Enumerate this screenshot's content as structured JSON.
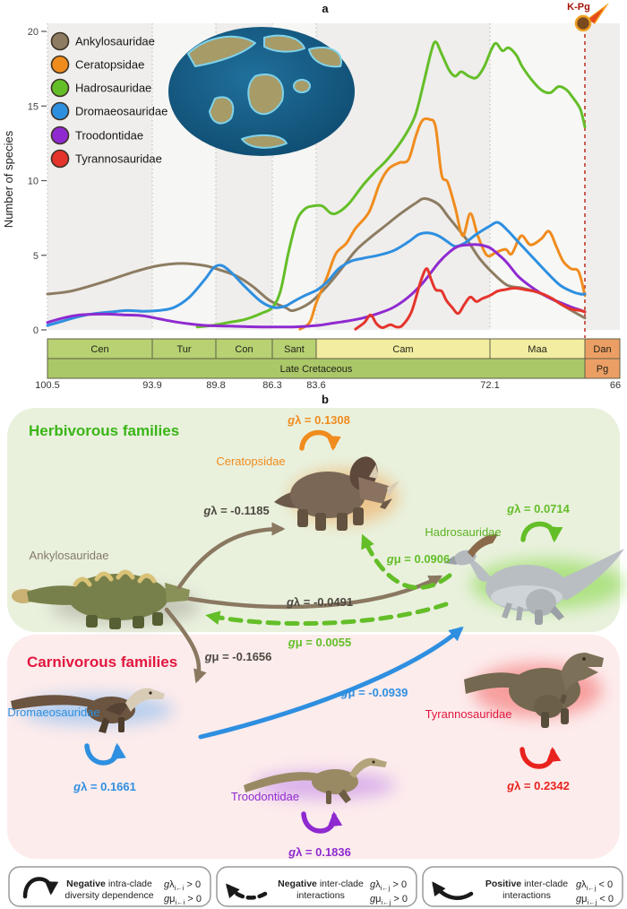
{
  "figure": {
    "panel_a_label": "a",
    "panel_b_label": "b"
  },
  "chart_data": {
    "type": "line",
    "title": "",
    "xlabel": "",
    "ylabel": "Number of species",
    "y_ticks": [
      0,
      5,
      10,
      15,
      20
    ],
    "ylim": [
      0,
      20
    ],
    "x_axis_reversed": true,
    "x_range_ma": [
      100.5,
      66
    ],
    "x_tick_labels": [
      "100.5",
      "93.9",
      "89.8",
      "86.3",
      "83.6",
      "72.1",
      "66"
    ],
    "kpg_label": "K-Pg",
    "legend_position": "upper-left",
    "grid": "dotted vertical stage boundaries",
    "series": [
      {
        "name": "Ankylosauridae",
        "color": "#8d7c62",
        "points": [
          [
            100.5,
            2.4
          ],
          [
            99,
            2.6
          ],
          [
            97,
            3.2
          ],
          [
            95,
            3.9
          ],
          [
            93.5,
            4.3
          ],
          [
            92,
            4.45
          ],
          [
            90.5,
            4.3
          ],
          [
            89.5,
            4.0
          ],
          [
            88.5,
            3.6
          ],
          [
            87.5,
            2.9
          ],
          [
            86.5,
            2.0
          ],
          [
            85.5,
            1.5
          ],
          [
            85,
            1.3
          ],
          [
            84,
            1.8
          ],
          [
            83,
            2.8
          ],
          [
            82,
            4.0
          ],
          [
            81,
            5.3
          ],
          [
            80,
            6.2
          ],
          [
            79,
            7.0
          ],
          [
            78,
            7.8
          ],
          [
            77,
            8.5
          ],
          [
            76.4,
            8.8
          ],
          [
            75.5,
            8.4
          ],
          [
            74.8,
            7.5
          ],
          [
            73.6,
            6.0
          ],
          [
            72.8,
            4.8
          ],
          [
            72,
            3.9
          ],
          [
            71,
            3.0
          ],
          [
            70,
            2.8
          ],
          [
            69,
            2.5
          ],
          [
            68,
            2.0
          ],
          [
            67.5,
            1.7
          ],
          [
            66.7,
            1.2
          ],
          [
            66,
            0.8
          ]
        ]
      },
      {
        "name": "Ceratopsidae",
        "color": "#f08c1e",
        "points": [
          [
            84.6,
            0.05
          ],
          [
            84.0,
            0.5
          ],
          [
            83.6,
            1.8
          ],
          [
            82.9,
            3.5
          ],
          [
            82.3,
            5.1
          ],
          [
            81.6,
            5.8
          ],
          [
            81,
            6.8
          ],
          [
            80.1,
            7.9
          ],
          [
            79.4,
            9.8
          ],
          [
            78.8,
            10.8
          ],
          [
            78.1,
            11.2
          ],
          [
            77.5,
            11.4
          ],
          [
            77,
            13.0
          ],
          [
            76.6,
            14.0
          ],
          [
            76.1,
            14.1
          ],
          [
            75.7,
            13.6
          ],
          [
            75.3,
            10.4
          ],
          [
            74.9,
            9.9
          ],
          [
            74.4,
            8.2
          ],
          [
            73.9,
            6.3
          ],
          [
            73.4,
            7.8
          ],
          [
            72.9,
            6.3
          ],
          [
            72.3,
            5.0
          ],
          [
            71.7,
            5.2
          ],
          [
            71.1,
            5.4
          ],
          [
            70.7,
            5.1
          ],
          [
            70.1,
            6.3
          ],
          [
            69.5,
            5.7
          ],
          [
            68.8,
            6.1
          ],
          [
            68.3,
            6.6
          ],
          [
            67.8,
            5.5
          ],
          [
            67.4,
            4.6
          ],
          [
            66.9,
            4.1
          ],
          [
            66.4,
            3.9
          ],
          [
            66,
            2.3
          ]
        ]
      },
      {
        "name": "Hadrosauridae",
        "color": "#64be28",
        "points": [
          [
            91,
            0.2
          ],
          [
            90,
            0.3
          ],
          [
            89,
            0.5
          ],
          [
            88,
            0.7
          ],
          [
            87,
            1.1
          ],
          [
            86.3,
            1.5
          ],
          [
            85.8,
            2.6
          ],
          [
            85.3,
            5.2
          ],
          [
            84.8,
            7.3
          ],
          [
            84.3,
            8.1
          ],
          [
            83.8,
            8.3
          ],
          [
            83.2,
            8.3
          ],
          [
            82.6,
            7.8
          ],
          [
            82.1,
            7.9
          ],
          [
            81.4,
            8.5
          ],
          [
            80.5,
            9.7
          ],
          [
            79.7,
            10.6
          ],
          [
            79,
            11.3
          ],
          [
            78.2,
            12.3
          ],
          [
            77.5,
            13.4
          ],
          [
            77,
            14.5
          ],
          [
            76.5,
            16.5
          ],
          [
            76,
            18.6
          ],
          [
            75.7,
            19.3
          ],
          [
            75.3,
            18.5
          ],
          [
            74.8,
            17.4
          ],
          [
            74.4,
            17.0
          ],
          [
            74,
            17.3
          ],
          [
            73.5,
            17.0
          ],
          [
            73,
            16.9
          ],
          [
            72.5,
            17.6
          ],
          [
            72,
            18.8
          ],
          [
            71.7,
            19.2
          ],
          [
            71.3,
            18.7
          ],
          [
            70.9,
            18.9
          ],
          [
            70.4,
            18.4
          ],
          [
            70,
            17.6
          ],
          [
            69.3,
            16.6
          ],
          [
            68.7,
            16.0
          ],
          [
            68.2,
            15.9
          ],
          [
            67.7,
            16.3
          ],
          [
            67.2,
            16.1
          ],
          [
            66.8,
            15.6
          ],
          [
            66.3,
            14.8
          ],
          [
            66,
            13.6
          ]
        ]
      },
      {
        "name": "Dromaeosauridae",
        "color": "#2e8fe0",
        "points": [
          [
            100.5,
            0.3
          ],
          [
            99.5,
            0.6
          ],
          [
            98.5,
            0.9
          ],
          [
            97.5,
            1.1
          ],
          [
            96.5,
            1.2
          ],
          [
            95.5,
            1.3
          ],
          [
            94.5,
            1.25
          ],
          [
            93.5,
            1.3
          ],
          [
            92.5,
            1.5
          ],
          [
            91.5,
            2.2
          ],
          [
            90.5,
            3.4
          ],
          [
            89.9,
            4.2
          ],
          [
            89.4,
            4.3
          ],
          [
            88.8,
            3.8
          ],
          [
            88,
            2.9
          ],
          [
            87,
            1.9
          ],
          [
            86.2,
            1.5
          ],
          [
            85.5,
            1.6
          ],
          [
            85,
            1.9
          ],
          [
            84.3,
            2.3
          ],
          [
            83.5,
            2.7
          ],
          [
            82.8,
            3.3
          ],
          [
            82.1,
            4.1
          ],
          [
            81.3,
            4.6
          ],
          [
            80.5,
            4.8
          ],
          [
            79.5,
            5.0
          ],
          [
            78.5,
            5.3
          ],
          [
            77.5,
            5.9
          ],
          [
            76.8,
            6.4
          ],
          [
            76.2,
            6.5
          ],
          [
            75.5,
            6.3
          ],
          [
            74.9,
            5.9
          ],
          [
            74.4,
            5.6
          ],
          [
            73.8,
            5.8
          ],
          [
            73,
            6.4
          ],
          [
            72.2,
            6.9
          ],
          [
            71.6,
            7.2
          ],
          [
            71,
            6.7
          ],
          [
            70.2,
            5.8
          ],
          [
            69.3,
            4.8
          ],
          [
            68.4,
            3.8
          ],
          [
            67.6,
            3.0
          ],
          [
            66.9,
            2.6
          ],
          [
            66.3,
            2.4
          ],
          [
            66,
            2.4
          ]
        ]
      },
      {
        "name": "Troodontidae",
        "color": "#8f2ad0",
        "points": [
          [
            100.5,
            0.5
          ],
          [
            99.5,
            0.8
          ],
          [
            98.5,
            1.0
          ],
          [
            97.5,
            1.05
          ],
          [
            96.5,
            1.05
          ],
          [
            95.5,
            1.0
          ],
          [
            94.5,
            0.95
          ],
          [
            93.5,
            0.75
          ],
          [
            92.5,
            0.55
          ],
          [
            91.5,
            0.4
          ],
          [
            90.5,
            0.3
          ],
          [
            89,
            0.25
          ],
          [
            87,
            0.2
          ],
          [
            85,
            0.2
          ],
          [
            83.5,
            0.3
          ],
          [
            82.5,
            0.45
          ],
          [
            81.5,
            0.6
          ],
          [
            80.5,
            0.8
          ],
          [
            79.5,
            1.1
          ],
          [
            78.5,
            1.5
          ],
          [
            77.5,
            2.2
          ],
          [
            76.5,
            3.2
          ],
          [
            75.5,
            4.5
          ],
          [
            74.8,
            5.2
          ],
          [
            74.2,
            5.6
          ],
          [
            73.5,
            5.7
          ],
          [
            72.8,
            5.7
          ],
          [
            72.1,
            5.5
          ],
          [
            71.5,
            5.0
          ],
          [
            71,
            4.5
          ],
          [
            70.3,
            3.6
          ],
          [
            69.6,
            3.0
          ],
          [
            68.9,
            2.5
          ],
          [
            68.2,
            2.1
          ],
          [
            67.5,
            1.8
          ],
          [
            66.8,
            1.5
          ],
          [
            66.2,
            1.3
          ],
          [
            66,
            1.2
          ]
        ]
      },
      {
        "name": "Tyrannosauridae",
        "color": "#e5342c",
        "points": [
          [
            81,
            0.05
          ],
          [
            80.4,
            0.5
          ],
          [
            80,
            1.0
          ],
          [
            79.6,
            0.4
          ],
          [
            79.2,
            0.15
          ],
          [
            78.7,
            0.35
          ],
          [
            78.3,
            0.2
          ],
          [
            77.9,
            0.3
          ],
          [
            77.3,
            1.2
          ],
          [
            76.7,
            3.2
          ],
          [
            76.3,
            4.1
          ],
          [
            76,
            3.4
          ],
          [
            75.7,
            2.7
          ],
          [
            75.3,
            2.6
          ],
          [
            75,
            2.0
          ],
          [
            74.6,
            1.5
          ],
          [
            74.2,
            1.1
          ],
          [
            73.8,
            1.7
          ],
          [
            73.4,
            2.2
          ],
          [
            73,
            1.9
          ],
          [
            72.6,
            2.1
          ],
          [
            72.1,
            2.3
          ],
          [
            71.6,
            2.6
          ],
          [
            71.1,
            2.7
          ],
          [
            70.5,
            2.8
          ],
          [
            69.9,
            2.7
          ],
          [
            69.3,
            2.6
          ],
          [
            68.7,
            2.4
          ],
          [
            68.1,
            2.1
          ],
          [
            67.5,
            1.7
          ],
          [
            66.9,
            1.4
          ],
          [
            66.3,
            1.3
          ],
          [
            66,
            1.2
          ]
        ]
      }
    ]
  },
  "timescale": {
    "stages": [
      {
        "label": "Cen",
        "color": "#b7d173"
      },
      {
        "label": "Tur",
        "color": "#b7d173"
      },
      {
        "label": "Con",
        "color": "#b7d173"
      },
      {
        "label": "Sant",
        "color": "#b7d173"
      },
      {
        "label": "Cam",
        "color": "#f2eda1"
      },
      {
        "label": "Maa",
        "color": "#f2eda1"
      },
      {
        "label": "Dan",
        "color": "#ec9f64"
      }
    ],
    "eras": [
      {
        "label": "Late Cretaceous",
        "color": "#abc868"
      },
      {
        "label": "Pg",
        "color": "#ec9f64"
      }
    ]
  },
  "panel_b": {
    "herbivores_title": "Herbivorous families",
    "carnivores_title": "Carnivorous families",
    "title_colors": {
      "herbivores": "#3bb517",
      "carnivores": "#e1173f"
    },
    "panel_fills": {
      "herbivores": "#e9f1dd",
      "carnivores": "#fdecec"
    },
    "colors": {
      "brown": "#8a7861",
      "green": "#64be28",
      "blue": "#2e8fe0",
      "orange": "#f08c1e",
      "purple": "#8f2ad0",
      "red": "#e8231e",
      "black": "#1a1a1a",
      "dark_text": "#4c483f"
    },
    "families": [
      {
        "name": "Ankylosauridae",
        "color": "#85796a"
      },
      {
        "name": "Ceratopsidae",
        "color": "#f08c1e"
      },
      {
        "name": "Hadrosauridae",
        "color": "#5cb324"
      },
      {
        "name": "Dromaeosauridae",
        "color": "#2e8fe0"
      },
      {
        "name": "Troodontidae",
        "color": "#8f2ad0"
      },
      {
        "name": "Tyrannosauridae",
        "color": "#e1173f"
      }
    ],
    "self_loops": [
      {
        "family": "Ceratopsidae",
        "g": "g",
        "rest": "λ = 0.1308"
      },
      {
        "family": "Hadrosauridae",
        "g": "g",
        "rest": "λ = 0.0714"
      },
      {
        "family": "Dromaeosauridae",
        "g": "g",
        "rest": "λ = 0.1661"
      },
      {
        "family": "Troodontidae",
        "g": "g",
        "rest": "λ = 0.1836"
      },
      {
        "family": "Tyrannosauridae",
        "g": "g",
        "rest": "λ = 0.2342"
      }
    ],
    "interactions": [
      {
        "from": "Ankylosauridae",
        "to": "Ceratopsidae",
        "style": "solid",
        "g": "g",
        "rest": "λ = -0.1185"
      },
      {
        "from": "Hadrosauridae",
        "to": "Ceratopsidae",
        "style": "dashed",
        "g": "g",
        "rest": "μ = 0.0906"
      },
      {
        "from": "Ankylosauridae",
        "to": "Hadrosauridae",
        "style": "solid",
        "g": "g",
        "rest": "λ = -0.0491"
      },
      {
        "from": "Hadrosauridae",
        "to": "Ankylosauridae",
        "style": "dashed",
        "g": "g",
        "rest": "μ = 0.0055"
      },
      {
        "from": "Ankylosauridae",
        "to": "Dromaeosauridae",
        "style": "solid",
        "g": "g",
        "rest": "μ = -0.1656"
      },
      {
        "from": "Dromaeosauridae",
        "to": "Hadrosauridae",
        "style": "solid",
        "g": "g",
        "rest": "μ = -0.0939"
      }
    ]
  },
  "legend_boxes": [
    {
      "icon": "self-loop-arrow",
      "line1_bold": "Negative",
      "line1_rest": " intra-clade",
      "line2": "diversity dependence",
      "f1": {
        "g": "g",
        "sym": "λ",
        "sub": "i←i",
        "rel": " > 0"
      },
      "f2": {
        "g": "g",
        "sym": "μ",
        "sub": "i←i",
        "rel": " > 0"
      }
    },
    {
      "icon": "dashed-curved-arrow",
      "line1_bold": "Negative",
      "line1_rest": " inter-clade",
      "line2": "interactions",
      "f1": {
        "g": "g",
        "sym": "λ",
        "sub": "i←j",
        "rel": " > 0"
      },
      "f2": {
        "g": "g",
        "sym": "μ",
        "sub": "i←j",
        "rel": " > 0"
      }
    },
    {
      "icon": "solid-curved-arrow",
      "line1_bold": "Positive",
      "line1_rest": " inter-clade",
      "line2": "interactions",
      "f1": {
        "g": "g",
        "sym": "λ",
        "sub": "i←j",
        "rel": " < 0"
      },
      "f2": {
        "g": "g",
        "sym": "μ",
        "sub": "i←j",
        "rel": " < 0"
      }
    }
  ]
}
